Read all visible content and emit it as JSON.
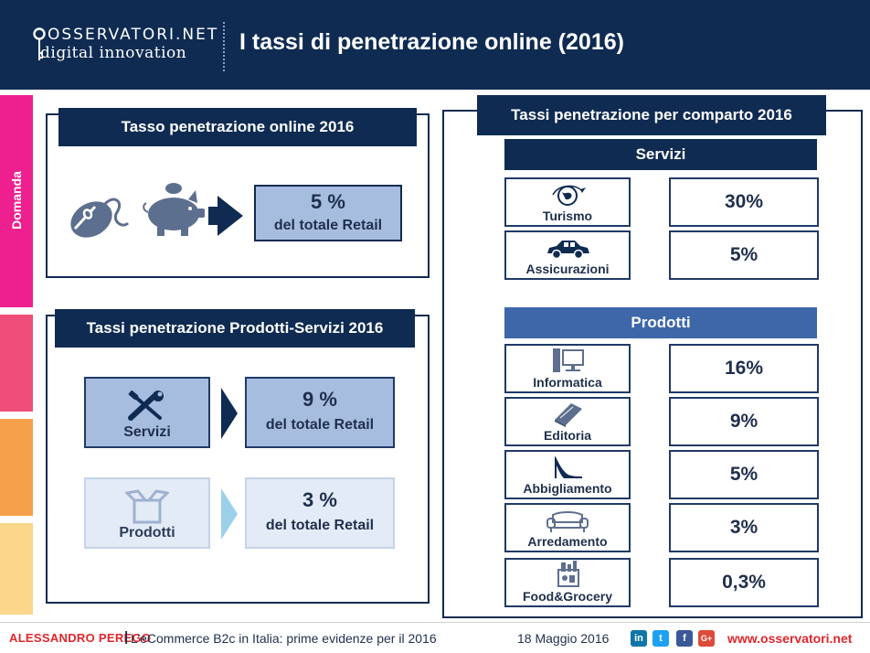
{
  "header": {
    "logo_line1": "OSSERVATORI.NET",
    "logo_line2": "digital innovation",
    "title": "I tassi di penetrazione online (2016)"
  },
  "sidebar": {
    "label": "Domanda",
    "colors": [
      "#ee1f8f",
      "#f04e7a",
      "#f6a04c",
      "#fbd68b"
    ]
  },
  "online_panel": {
    "title": "Tasso penetrazione online 2016",
    "value": "5 %",
    "caption": "del totale Retail",
    "icons": [
      "mouse-icon",
      "piggy-bank-icon",
      "arrow-right-icon"
    ]
  },
  "segments_panel": {
    "title": "Tassi penetrazione Prodotti-Servizi 2016",
    "servizi": {
      "label": "Servizi",
      "icon": "tools-icon",
      "value": "9 %",
      "caption": "del totale Retail"
    },
    "prodotti": {
      "label": "Prodotti",
      "icon": "box-icon",
      "value": "3 %",
      "caption": "del totale Retail"
    }
  },
  "comparto_panel": {
    "title": "Tassi penetrazione per comparto 2016",
    "servizi_heading": "Servizi",
    "servizi_items": [
      {
        "label": "Turismo",
        "icon": "globe-plane-icon",
        "value": "30%"
      },
      {
        "label": "Assicurazioni",
        "icon": "car-icon",
        "value": "5%"
      }
    ],
    "prodotti_heading": "Prodotti",
    "prodotti_items": [
      {
        "label": "Informatica",
        "icon": "computer-icon",
        "value": "16%"
      },
      {
        "label": "Editoria",
        "icon": "book-icon",
        "value": "9%"
      },
      {
        "label": "Abbigliamento",
        "icon": "high-heel-icon",
        "value": "5%"
      },
      {
        "label": "Arredamento",
        "icon": "sofa-icon",
        "value": "3%"
      },
      {
        "label": "Food&Grocery",
        "icon": "grocery-bag-icon",
        "value": "0,3%"
      }
    ]
  },
  "footer": {
    "author": "ALESSANDRO PEREGO",
    "separator": "|",
    "event": "L’eCommerce B2c in Italia: prime evidenze per il 2016",
    "date": "18 Maggio 2016",
    "social": [
      "in",
      "t",
      "f",
      "G+"
    ],
    "website": "www.osservatori.net",
    "accent_color": "#e0262b"
  },
  "colors": {
    "navy": "#0f2b52",
    "light_blue": "#a7bde0",
    "mid_blue": "#3e67aa"
  }
}
